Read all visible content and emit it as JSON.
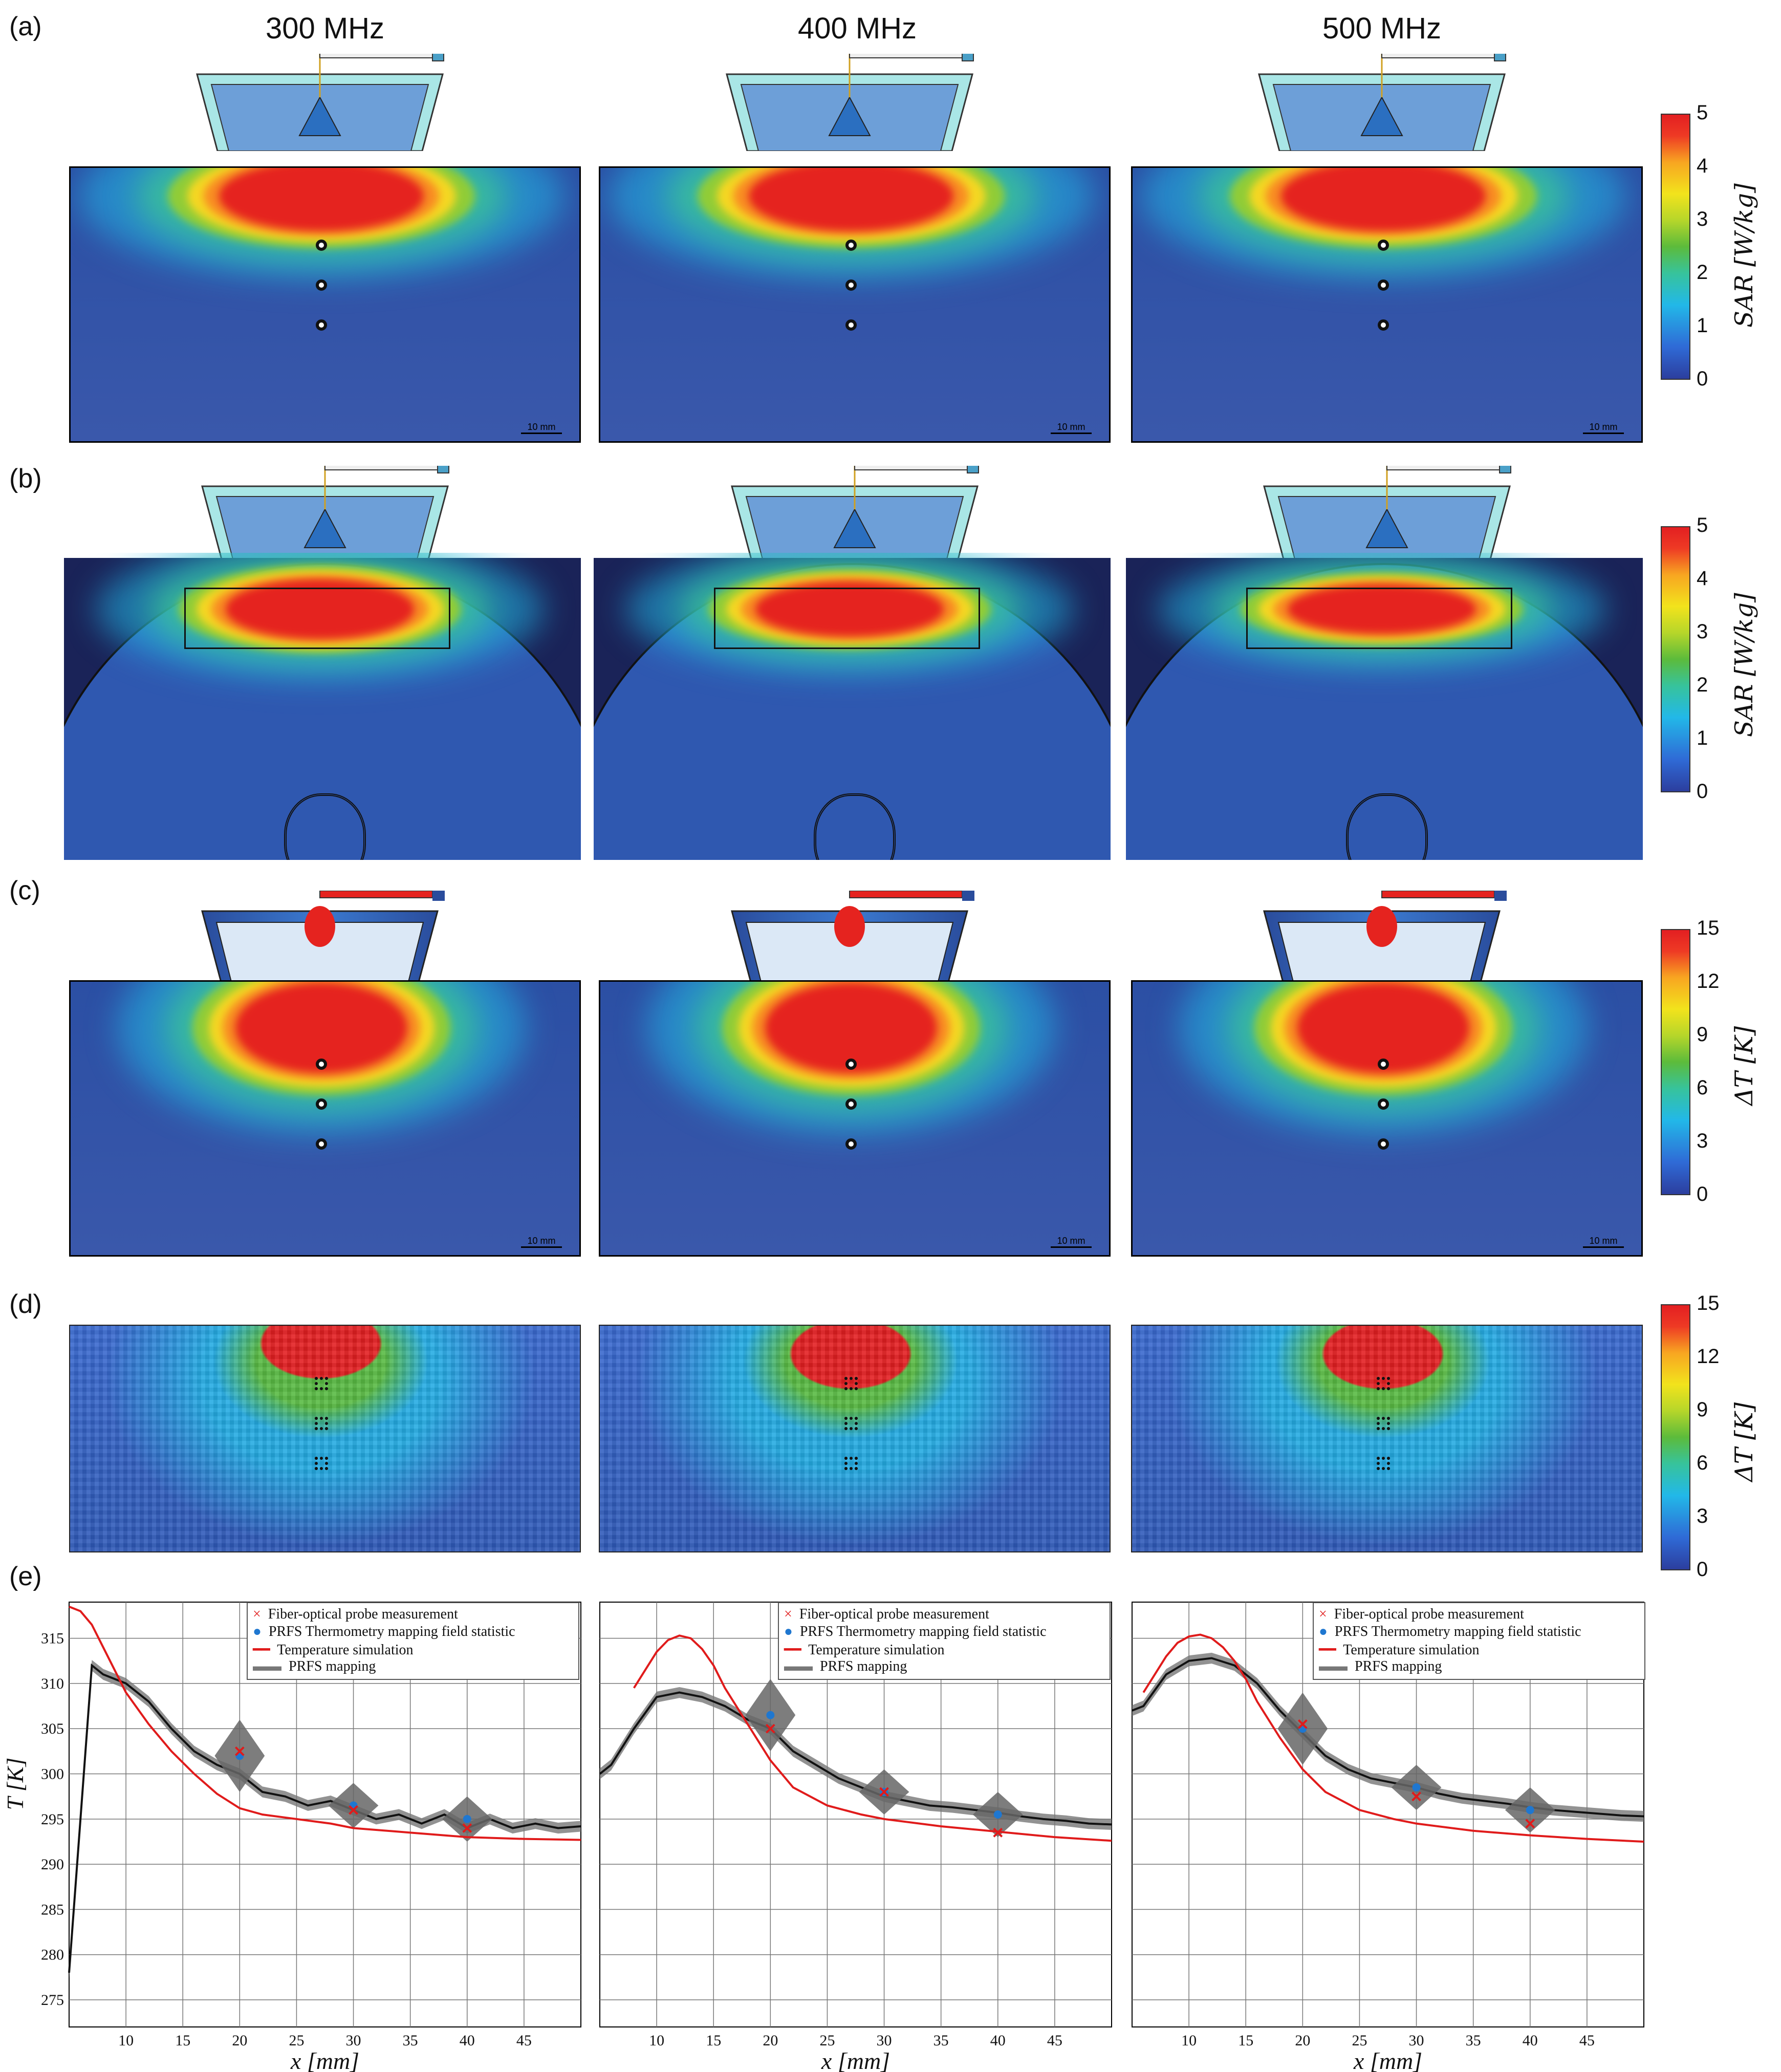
{
  "frequencies": [
    "300 MHz",
    "400 MHz",
    "500 MHz"
  ],
  "row_labels": [
    "(a)",
    "(b)",
    "(c)",
    "(d)",
    "(e)"
  ],
  "scale_bar_label": "10 mm",
  "colorbars": {
    "sar": {
      "ticks": [
        "5",
        "4",
        "3",
        "2",
        "1",
        "0"
      ],
      "label": "SAR",
      "unit": "[W/kg]"
    },
    "dt": {
      "ticks": [
        "15",
        "12",
        "9",
        "6",
        "3",
        "0"
      ],
      "label": "ΔT",
      "unit": "[K]"
    }
  },
  "colors": {
    "panel_bg": "#2b4fa4",
    "hot": "#e31f22",
    "sim_line": "#e01b1b",
    "prfs_line": "#111111",
    "probe_marker": "#e01b1b",
    "prfs_marker": "#1f77d0"
  },
  "legend": {
    "fiber": "Fiber-optical probe measurement",
    "prfs_stat": "PRFS Thermometry mapping field statistic",
    "sim": "Temperature simulation",
    "prfs_map": "PRFS mapping"
  },
  "chart_data": [
    {
      "type": "line",
      "title": "300 MHz",
      "xlabel": "x  [mm]",
      "ylabel": "T  [K]",
      "xlim": [
        5,
        50
      ],
      "ylim": [
        272,
        319
      ],
      "xticks": [
        "10",
        "15",
        "20",
        "25",
        "30",
        "35",
        "40",
        "45"
      ],
      "yticks": [
        "275",
        "280",
        "285",
        "290",
        "295",
        "300",
        "305",
        "310",
        "315"
      ],
      "series": [
        {
          "name": "Temperature simulation",
          "x": [
            5,
            6,
            7,
            8,
            9,
            10,
            12,
            14,
            16,
            18,
            20,
            22,
            25,
            28,
            30,
            35,
            40,
            45,
            50
          ],
          "y": [
            318.5,
            318,
            316.5,
            314,
            311.5,
            309,
            305.5,
            302.5,
            300,
            297.8,
            296.2,
            295.5,
            295,
            294.5,
            294,
            293.5,
            293,
            292.8,
            292.7
          ]
        },
        {
          "name": "PRFS mapping",
          "x": [
            5,
            6,
            7,
            8,
            10,
            12,
            14,
            16,
            18,
            20,
            22,
            24,
            26,
            28,
            30,
            32,
            34,
            36,
            38,
            40,
            42,
            44,
            46,
            48,
            50
          ],
          "y": [
            278,
            295,
            312,
            311,
            310,
            308,
            305,
            302.5,
            301,
            300,
            298,
            297.5,
            296.5,
            297,
            296,
            295,
            295.5,
            294.5,
            295.5,
            294,
            295,
            294,
            294.5,
            294,
            294.2
          ]
        }
      ],
      "probe_points": {
        "x": [
          20,
          30,
          40
        ],
        "y": [
          302.5,
          296,
          294
        ]
      },
      "prfs_stat_points": {
        "x": [
          20,
          30,
          40
        ],
        "y": [
          302,
          296.5,
          295
        ]
      }
    },
    {
      "type": "line",
      "title": "400 MHz",
      "xlabel": "x  [mm]",
      "ylabel": "",
      "xlim": [
        5,
        50
      ],
      "ylim": [
        272,
        319
      ],
      "xticks": [
        "10",
        "15",
        "20",
        "25",
        "30",
        "35",
        "40",
        "45"
      ],
      "yticks": [],
      "series": [
        {
          "name": "Temperature simulation",
          "x": [
            8,
            9,
            10,
            11,
            12,
            13,
            14,
            15,
            16,
            18,
            20,
            22,
            25,
            28,
            30,
            35,
            40,
            45,
            50
          ],
          "y": [
            309.5,
            311.5,
            313.5,
            314.8,
            315.3,
            315,
            313.8,
            312,
            309.5,
            305.5,
            301.5,
            298.5,
            296.5,
            295.5,
            295,
            294.2,
            293.6,
            293,
            292.6
          ]
        },
        {
          "name": "PRFS mapping",
          "x": [
            5,
            6,
            8,
            10,
            12,
            14,
            16,
            18,
            20,
            22,
            24,
            26,
            28,
            30,
            32,
            34,
            36,
            38,
            40,
            42,
            44,
            46,
            48,
            50
          ],
          "y": [
            300,
            301,
            305,
            308.5,
            309,
            308.5,
            307.5,
            306,
            305,
            302.5,
            301,
            299.5,
            298.5,
            297.5,
            297,
            296.5,
            296.3,
            296,
            295.7,
            295.3,
            295,
            294.8,
            294.5,
            294.4
          ]
        }
      ],
      "probe_points": {
        "x": [
          20,
          30,
          40
        ],
        "y": [
          305,
          298,
          293.5
        ]
      },
      "prfs_stat_points": {
        "x": [
          20,
          30,
          40
        ],
        "y": [
          306.5,
          298,
          295.5
        ]
      }
    },
    {
      "type": "line",
      "title": "500 MHz",
      "xlabel": "x  [mm]",
      "ylabel": "",
      "xlim": [
        5,
        50
      ],
      "ylim": [
        272,
        319
      ],
      "xticks": [
        "10",
        "15",
        "20",
        "25",
        "30",
        "35",
        "40",
        "45"
      ],
      "yticks": [],
      "series": [
        {
          "name": "Temperature simulation",
          "x": [
            6,
            7,
            8,
            9,
            10,
            11,
            12,
            13,
            14,
            15,
            16,
            18,
            20,
            22,
            25,
            28,
            30,
            35,
            40,
            45,
            50
          ],
          "y": [
            309,
            311,
            313,
            314.5,
            315.2,
            315.4,
            315,
            314,
            312.5,
            310.5,
            308,
            304,
            300.5,
            298,
            296,
            295,
            294.5,
            293.7,
            293.2,
            292.8,
            292.5
          ]
        },
        {
          "name": "PRFS mapping",
          "x": [
            5,
            6,
            8,
            10,
            12,
            14,
            16,
            18,
            20,
            22,
            24,
            26,
            28,
            30,
            32,
            34,
            36,
            38,
            40,
            42,
            44,
            46,
            48,
            50
          ],
          "y": [
            307,
            307.5,
            311,
            312.5,
            312.8,
            312,
            310,
            307,
            304.5,
            302,
            300.5,
            299.5,
            299,
            298.5,
            297.8,
            297.3,
            297,
            296.7,
            296.3,
            296,
            295.8,
            295.6,
            295.4,
            295.3
          ]
        }
      ],
      "probe_points": {
        "x": [
          20,
          30,
          40
        ],
        "y": [
          305.5,
          297.5,
          294.5
        ]
      },
      "prfs_stat_points": {
        "x": [
          20,
          30,
          40
        ],
        "y": [
          305,
          298.5,
          296
        ]
      }
    }
  ]
}
